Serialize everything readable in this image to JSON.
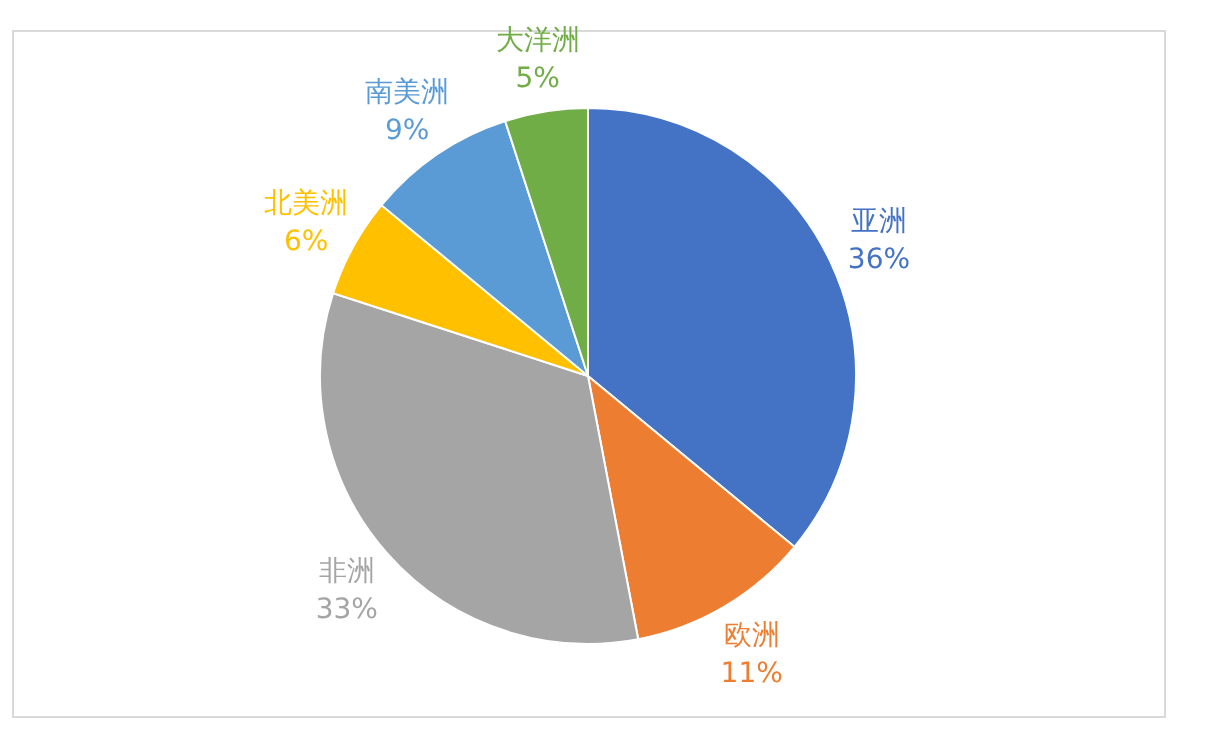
{
  "chart_data": {
    "type": "pie",
    "categories": [
      "亚洲",
      "欧洲",
      "非洲",
      "北美洲",
      "南美洲",
      "大洋洲"
    ],
    "values": [
      36,
      11,
      33,
      6,
      9,
      5
    ],
    "value_labels": [
      "36%",
      "11%",
      "33%",
      "6%",
      "9%",
      "5%"
    ],
    "colors": [
      "#4472c4",
      "#ed7d31",
      "#a5a5a5",
      "#ffc000",
      "#5b9bd5",
      "#70ad47"
    ],
    "legend": false
  }
}
